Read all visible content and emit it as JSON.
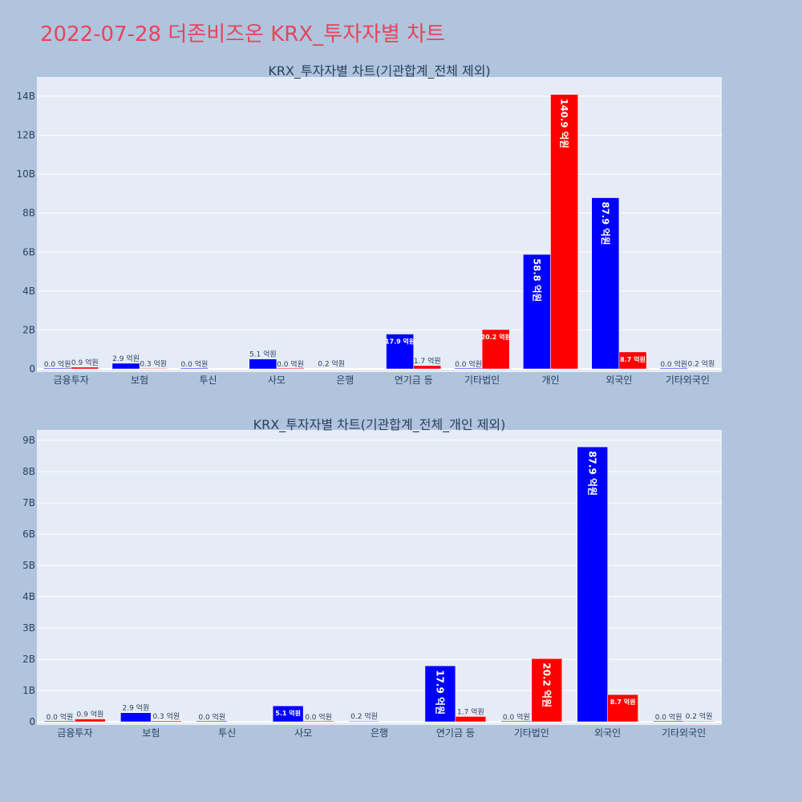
{
  "page": {
    "title": "2022-07-28 더존비즈온 KRX_투자자별 차트"
  },
  "colors": {
    "background": "#b0c4de",
    "plot_bg": "#e5ecf6",
    "grid": "#ffffff",
    "series_a": "#0000ff",
    "series_b": "#ff0000",
    "title": "#e8445a"
  },
  "chart_data": [
    {
      "type": "bar",
      "title": "KRX_투자자별 차트(기관합계_전체 제외)",
      "categories": [
        "금융투자",
        "보험",
        "투신",
        "사모",
        "은행",
        "연기금 등",
        "기타법인",
        "개인",
        "외국인",
        "기타외국인"
      ],
      "series": [
        {
          "values": [
            0.0,
            0.29,
            0.0,
            0.51,
            0.02,
            1.79,
            0.0,
            5.88,
            8.79,
            0.0
          ],
          "labels": [
            "0.0 억원",
            "2.9 억원",
            "0.0 억원",
            "5.1 억원",
            "0.2 억원",
            "17.9 억원",
            "0.0 억원",
            "58.8 억원",
            "87.9 억원",
            "0.0 억원"
          ]
        },
        {
          "values": [
            0.09,
            0.03,
            null,
            0.0,
            null,
            0.17,
            2.02,
            14.09,
            0.87,
            0.02
          ],
          "labels": [
            "0.9 억원",
            "0.3 억원",
            "",
            "0.0 억원",
            "",
            "1.7 억원",
            "20.2 억원",
            "140.9 억원",
            "8.7 억원",
            "0.2 억원"
          ]
        }
      ],
      "yticks": [
        0,
        2,
        4,
        6,
        8,
        10,
        12,
        14
      ],
      "ytick_labels": [
        "0",
        "2B",
        "4B",
        "6B",
        "8B",
        "10B",
        "12B",
        "14B"
      ],
      "ylim": [
        0,
        14.8
      ],
      "grid": true
    },
    {
      "type": "bar",
      "title": "KRX_투자자별 차트(기관합계_전체_개인 제외)",
      "categories": [
        "금융투자",
        "보험",
        "투신",
        "사모",
        "은행",
        "연기금 등",
        "기타법인",
        "외국인",
        "기타외국인"
      ],
      "series": [
        {
          "values": [
            0.0,
            0.29,
            0.0,
            0.51,
            0.02,
            1.79,
            0.0,
            8.79,
            0.0
          ],
          "labels": [
            "0.0 억원",
            "2.9 억원",
            "0.0 억원",
            "5.1 억원",
            "0.2 억원",
            "17.9 억원",
            "0.0 억원",
            "87.9 억원",
            "0.0 억원"
          ]
        },
        {
          "values": [
            0.09,
            0.03,
            null,
            0.0,
            null,
            0.17,
            2.02,
            0.87,
            0.02
          ],
          "labels": [
            "0.9 억원",
            "0.3 억원",
            "",
            "0.0 억원",
            "",
            "1.7 억원",
            "20.2 억원",
            "8.7 억원",
            "0.2 억원"
          ]
        }
      ],
      "yticks": [
        0,
        1,
        2,
        3,
        4,
        5,
        6,
        7,
        8,
        9
      ],
      "ytick_labels": [
        "0",
        "1B",
        "2B",
        "3B",
        "4B",
        "5B",
        "6B",
        "7B",
        "8B",
        "9B"
      ],
      "ylim": [
        0,
        9.3
      ],
      "grid": true
    }
  ]
}
